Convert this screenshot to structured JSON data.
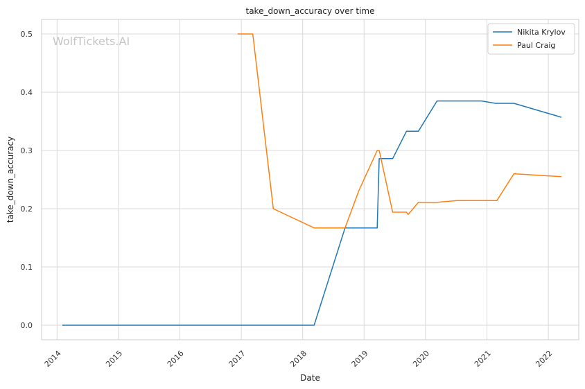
{
  "chart_data": {
    "type": "line",
    "title": "take_down_accuracy over time",
    "xlabel": "Date",
    "ylabel": "take_down_accuracy",
    "watermark": "WolfTickets.AI",
    "x_type": "date",
    "xlim": [
      "2013-10-01",
      "2022-07-01"
    ],
    "ylim": [
      -0.025,
      0.525
    ],
    "x_ticks": [
      "2014-01-01",
      "2015-01-01",
      "2016-01-01",
      "2017-01-01",
      "2018-01-01",
      "2019-01-01",
      "2020-01-01",
      "2021-01-01",
      "2022-01-01"
    ],
    "x_tick_labels": [
      "2014",
      "2015",
      "2016",
      "2017",
      "2018",
      "2019",
      "2020",
      "2021",
      "2022"
    ],
    "y_ticks": [
      0.0,
      0.1,
      0.2,
      0.3,
      0.4,
      0.5
    ],
    "y_tick_labels": [
      "0.0",
      "0.1",
      "0.2",
      "0.3",
      "0.4",
      "0.5"
    ],
    "grid": true,
    "legend_position": "top-right",
    "series": [
      {
        "name": "Nikita Krylov",
        "color": "#1f77b4",
        "points": [
          [
            "2014-02-01",
            0.0
          ],
          [
            "2018-03-10",
            0.0
          ],
          [
            "2018-09-10",
            0.167
          ],
          [
            "2019-03-20",
            0.167
          ],
          [
            "2019-04-01",
            0.286
          ],
          [
            "2019-06-20",
            0.286
          ],
          [
            "2019-09-10",
            0.333
          ],
          [
            "2019-11-20",
            0.333
          ],
          [
            "2020-03-10",
            0.385
          ],
          [
            "2020-12-01",
            0.385
          ],
          [
            "2021-02-20",
            0.381
          ],
          [
            "2021-06-10",
            0.381
          ],
          [
            "2022-03-20",
            0.357
          ]
        ]
      },
      {
        "name": "Paul Craig",
        "color": "#ff7f0e",
        "points": [
          [
            "2016-12-10",
            0.5
          ],
          [
            "2017-03-10",
            0.5
          ],
          [
            "2017-07-10",
            0.2
          ],
          [
            "2018-03-10",
            0.167
          ],
          [
            "2018-09-10",
            0.167
          ],
          [
            "2018-12-01",
            0.231
          ],
          [
            "2019-03-20",
            0.3
          ],
          [
            "2019-04-01",
            0.3
          ],
          [
            "2019-06-20",
            0.194
          ],
          [
            "2019-09-10",
            0.194
          ],
          [
            "2019-09-20",
            0.19
          ],
          [
            "2019-11-20",
            0.211
          ],
          [
            "2020-03-10",
            0.211
          ],
          [
            "2020-07-10",
            0.214
          ],
          [
            "2021-03-01",
            0.214
          ],
          [
            "2021-06-10",
            0.26
          ],
          [
            "2022-03-20",
            0.255
          ]
        ]
      }
    ]
  }
}
